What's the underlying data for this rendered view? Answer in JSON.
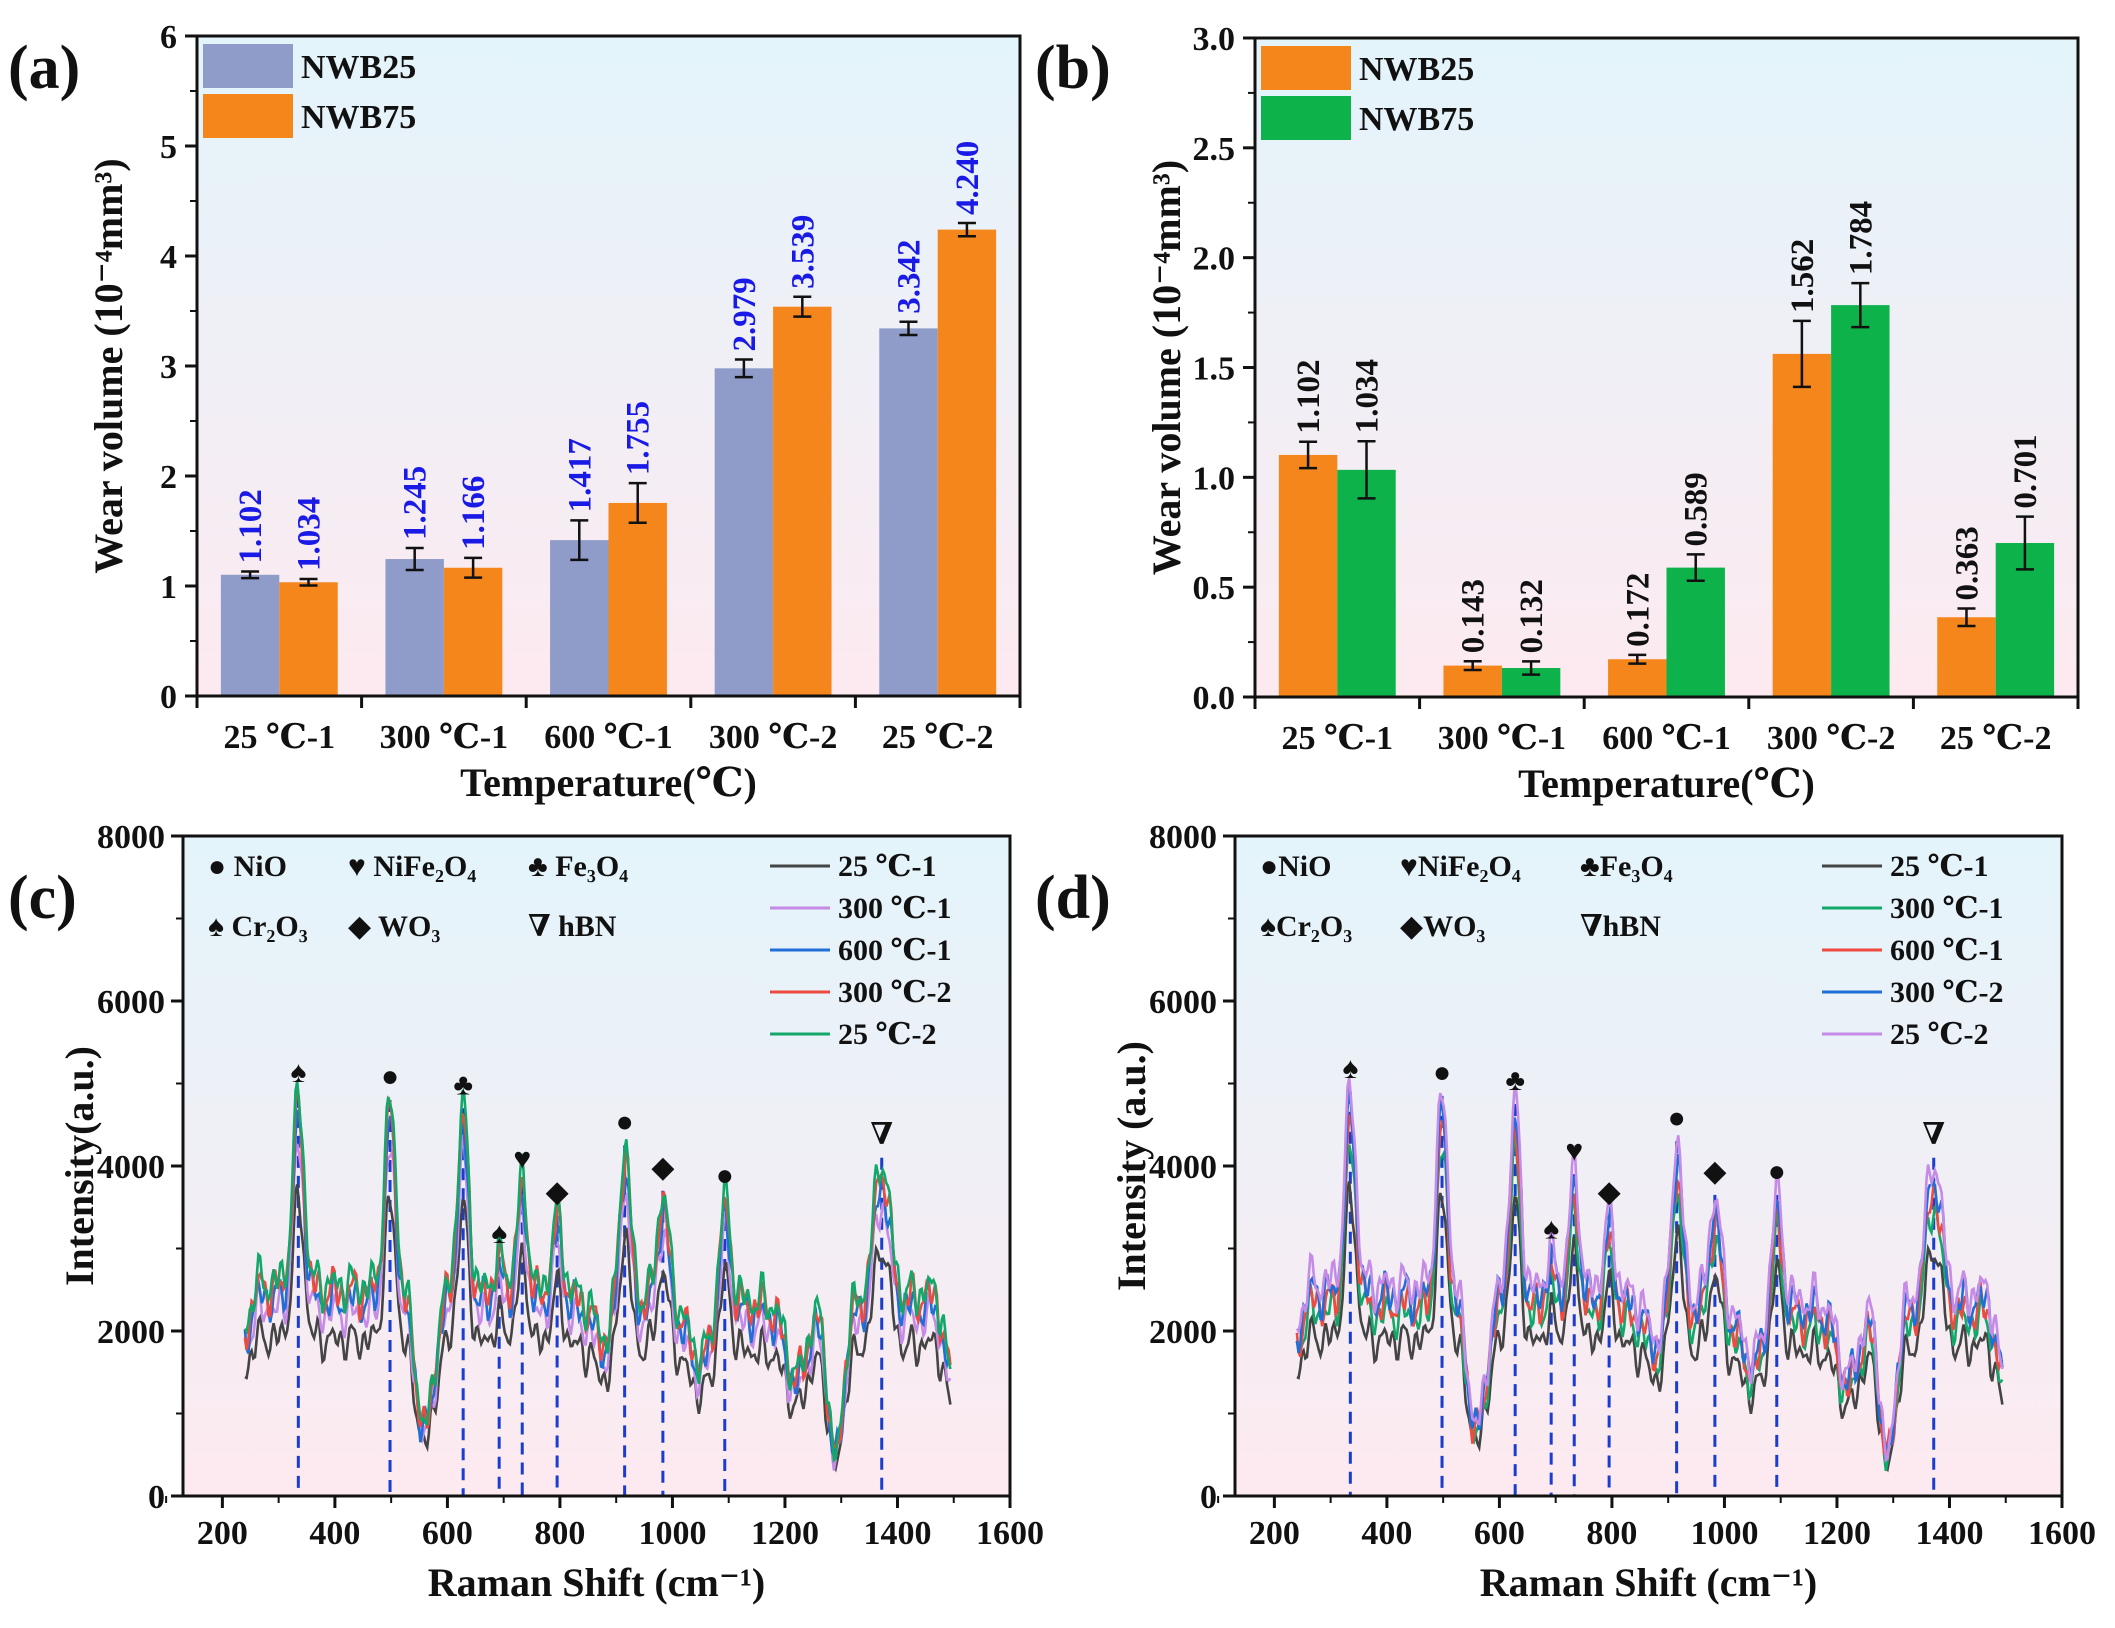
{
  "colors": {
    "nwb25_a": "#8f9bc9",
    "nwb75_a": "#f4861c",
    "nwb25_b": "#f4861c",
    "nwb75_b": "#0db24a",
    "datalabel_a": "#1a1ae6",
    "datalabel_b": "#111111",
    "refline": "#1a3ccf",
    "bg_top": "#e3f4fb",
    "bg_bottom": "#fdeaf0"
  },
  "chart_data": [
    {
      "panel_label": "(a)",
      "type": "bar",
      "categories": [
        "25 ℃-1",
        "300 ℃-1",
        "600 ℃-1",
        "300 ℃-2",
        "25 ℃-2"
      ],
      "series": [
        {
          "name": "NWB25",
          "values": [
            1.102,
            1.245,
            1.417,
            2.979,
            3.342
          ],
          "value_labels": [
            "1.102",
            "1.245",
            "1.417",
            "2.979",
            "3.342"
          ],
          "errors": [
            0.03,
            0.1,
            0.18,
            0.08,
            0.06
          ],
          "color": "#8f9bc9"
        },
        {
          "name": "NWB75",
          "values": [
            1.034,
            1.166,
            1.755,
            3.539,
            4.24
          ],
          "value_labels": [
            "1.034",
            "1.166",
            "1.755",
            "3.539",
            "4.240"
          ],
          "errors": [
            0.03,
            0.09,
            0.18,
            0.09,
            0.06
          ],
          "color": "#f4861c"
        }
      ],
      "xlabel": "Temperature(℃)",
      "ylabel": "Wear volume (10⁻⁴mm³)",
      "ylim": [
        0,
        6
      ],
      "yticks": [
        "0",
        "1",
        "2",
        "3",
        "4",
        "5",
        "6"
      ],
      "legend": "top-left"
    },
    {
      "panel_label": "(b)",
      "type": "bar",
      "categories": [
        "25 ℃-1",
        "300 ℃-1",
        "600 ℃-1",
        "300 ℃-2",
        "25 ℃-2"
      ],
      "series": [
        {
          "name": "NWB25",
          "values": [
            1.102,
            0.143,
            0.172,
            1.562,
            0.363
          ],
          "value_labels": [
            "1.102",
            "0.143",
            "0.172",
            "1.562",
            "0.363"
          ],
          "errors": [
            0.06,
            0.02,
            0.02,
            0.15,
            0.04
          ],
          "color": "#f4861c"
        },
        {
          "name": "NWB75",
          "values": [
            1.034,
            0.132,
            0.589,
            1.784,
            0.701
          ],
          "value_labels": [
            "1.034",
            "0.132",
            "0.589",
            "1.784",
            "0.701"
          ],
          "errors": [
            0.13,
            0.03,
            0.06,
            0.1,
            0.12
          ],
          "color": "#0db24a"
        }
      ],
      "xlabel": "Temperature(℃)",
      "ylabel": "Wear volume (10⁻⁴mm³)",
      "ylim": [
        0,
        3.0
      ],
      "yticks": [
        "0.0",
        "0.5",
        "1.0",
        "1.5",
        "2.0",
        "2.5",
        "3.0"
      ],
      "legend": "top-left"
    },
    {
      "panel_label": "(c)",
      "type": "line",
      "xlabel": "Raman Shift (cm⁻¹)",
      "ylabel": "Intensity(a.u.)",
      "xlim": [
        130,
        1600
      ],
      "ylim": [
        0,
        8000
      ],
      "xticks": [
        "200",
        "400",
        "600",
        "800",
        "1000",
        "1200",
        "1400",
        "1600"
      ],
      "yticks": [
        "0",
        "2000",
        "4000",
        "6000",
        "8000"
      ],
      "legend": "top-right",
      "phase_legend": [
        "● NiO",
        "♥ NiFe₂O₄",
        "♣ Fe₃O₄",
        "♠ Cr₂O₃",
        "◆ WO₃",
        "∇ hBN"
      ],
      "series": [
        {
          "name": "25 ℃-1",
          "color": "#444444",
          "scale": 0.74
        },
        {
          "name": "300 ℃-1",
          "color": "#c58be6",
          "scale": 0.87
        },
        {
          "name": "600 ℃-1",
          "color": "#1f6fd6",
          "scale": 0.93
        },
        {
          "name": "300 ℃-2",
          "color": "#ef4a40",
          "scale": 0.97
        },
        {
          "name": "25 ℃-2",
          "color": "#12a86a",
          "scale": 1.0
        }
      ],
      "peaks": [
        {
          "x": 335,
          "y": 4850,
          "marker": "♠"
        },
        {
          "x": 498,
          "y": 4800,
          "marker": "●"
        },
        {
          "x": 628,
          "y": 4700,
          "marker": "♣"
        },
        {
          "x": 692,
          "y": 2900,
          "marker": "♠"
        },
        {
          "x": 733,
          "y": 3800,
          "marker": "♥"
        },
        {
          "x": 795,
          "y": 3400,
          "marker": "◆"
        },
        {
          "x": 915,
          "y": 4250,
          "marker": "●"
        },
        {
          "x": 983,
          "y": 3700,
          "marker": "◆"
        },
        {
          "x": 1093,
          "y": 3600,
          "marker": "●"
        },
        {
          "x": 1372,
          "y": 4100,
          "marker": "∇"
        }
      ]
    },
    {
      "panel_label": "(d)",
      "type": "line",
      "xlabel": "Raman Shift (cm⁻¹)",
      "ylabel": "Intensity (a.u.)",
      "xlim": [
        130,
        1600
      ],
      "ylim": [
        0,
        8000
      ],
      "xticks": [
        "200",
        "400",
        "600",
        "800",
        "1000",
        "1200",
        "1400",
        "1600"
      ],
      "yticks": [
        "0",
        "2000",
        "4000",
        "6000",
        "8000"
      ],
      "legend": "top-right",
      "phase_legend": [
        "●NiO",
        "♥NiFe₂O₄",
        "♣Fe₃O₄",
        "♠Cr₂O₃",
        "◆WO₃",
        "∇hBN"
      ],
      "series": [
        {
          "name": "25 ℃-1",
          "color": "#444444",
          "scale": 0.74
        },
        {
          "name": "300 ℃-1",
          "color": "#12a86a",
          "scale": 0.86
        },
        {
          "name": "600 ℃-1",
          "color": "#ef4a40",
          "scale": 0.91
        },
        {
          "name": "300 ℃-2",
          "color": "#1f6fd6",
          "scale": 0.95
        },
        {
          "name": "25 ℃-2",
          "color": "#c58be6",
          "scale": 1.0
        }
      ],
      "peaks": [
        {
          "x": 335,
          "y": 4900,
          "marker": "♠"
        },
        {
          "x": 498,
          "y": 4850,
          "marker": "●"
        },
        {
          "x": 628,
          "y": 4750,
          "marker": "♣"
        },
        {
          "x": 692,
          "y": 2950,
          "marker": "♠"
        },
        {
          "x": 733,
          "y": 3900,
          "marker": "♥"
        },
        {
          "x": 795,
          "y": 3400,
          "marker": "◆"
        },
        {
          "x": 915,
          "y": 4300,
          "marker": "●"
        },
        {
          "x": 983,
          "y": 3650,
          "marker": "◆"
        },
        {
          "x": 1093,
          "y": 3650,
          "marker": "●"
        },
        {
          "x": 1372,
          "y": 4100,
          "marker": "∇"
        }
      ]
    }
  ]
}
